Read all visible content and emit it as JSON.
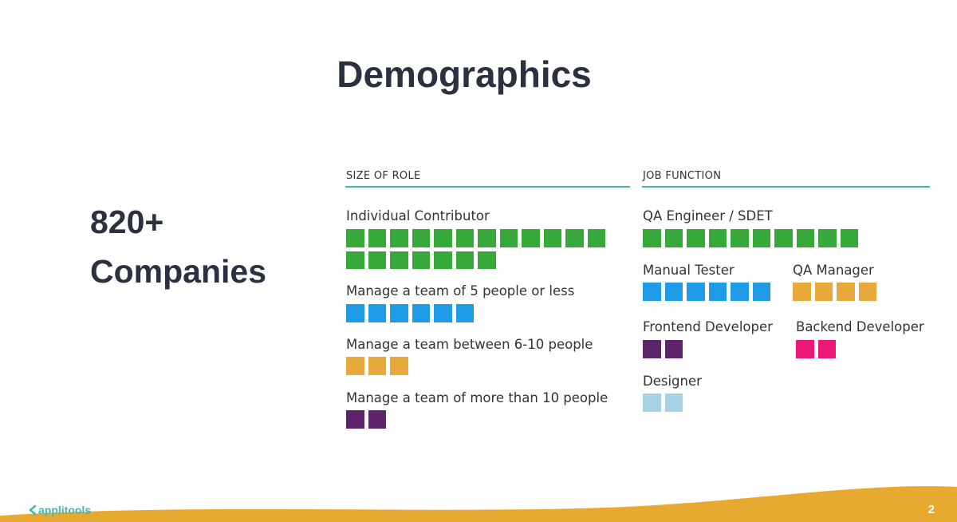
{
  "slide": {
    "title": "Demographics",
    "stat_line1": "820+",
    "stat_line2": "Companies",
    "page_number": "2",
    "logo_text": "applitools"
  },
  "colors": {
    "green": "#36a93a",
    "blue": "#1f9be8",
    "gold": "#e8a93b",
    "purple": "#5c2569",
    "pink": "#ec1877",
    "lightblue": "#a8d1e6",
    "teal": "#3fb8ad",
    "wave": "#e8a931"
  },
  "size_of_role": {
    "header": "SIZE OF ROLE",
    "items": [
      {
        "label": "Individual Contributor",
        "count": 19,
        "color": "green"
      },
      {
        "label": "Manage a team of 5 people or less",
        "count": 6,
        "color": "blue"
      },
      {
        "label": "Manage a team between 6-10 people",
        "count": 3,
        "color": "gold"
      },
      {
        "label": "Manage a team of more than 10 people",
        "count": 2,
        "color": "purple"
      }
    ]
  },
  "job_function": {
    "header": "JOB FUNCTION",
    "items": [
      {
        "label": "QA Engineer / SDET",
        "count": 10,
        "color": "green"
      },
      {
        "label": "Manual Tester",
        "count": 6,
        "color": "blue"
      },
      {
        "label": "QA Manager",
        "count": 4,
        "color": "gold"
      },
      {
        "label": "Frontend Developer",
        "count": 2,
        "color": "purple"
      },
      {
        "label": "Backend Developer",
        "count": 2,
        "color": "pink"
      },
      {
        "label": "Designer",
        "count": 2,
        "color": "lightblue"
      }
    ]
  }
}
